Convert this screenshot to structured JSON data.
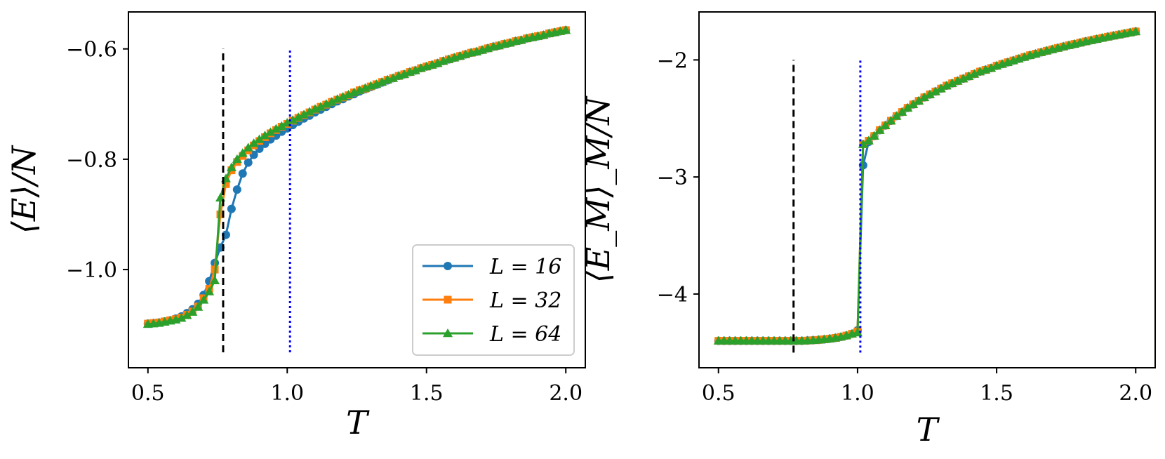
{
  "colors": {
    "L16": "#1f77b4",
    "L32": "#ff7f0e",
    "L64": "#2ca02c",
    "dashed_line": "#000000",
    "dotted_line": "#0000ff"
  },
  "chart_data": [
    {
      "type": "line",
      "title": "",
      "xlabel": "T",
      "ylabel": "⟨E⟩/N",
      "xlim": [
        0.43,
        2.07
      ],
      "ylim": [
        -1.178,
        -0.533
      ],
      "xticks": [
        0.5,
        1.0,
        1.5,
        2.0
      ],
      "xtick_labels": [
        "0.5",
        "1.0",
        "1.5",
        "2.0"
      ],
      "yticks": [
        -0.6,
        -0.8,
        -1.0
      ],
      "ytick_labels": [
        "−0.6",
        "−0.8",
        "−1.0"
      ],
      "legend_position": "lower-right",
      "vlines": [
        {
          "x": 0.77,
          "ymin": -1.15,
          "ymax": -0.6,
          "style": "dashed",
          "color": "#000000"
        },
        {
          "x": 1.01,
          "ymin": -1.15,
          "ymax": -0.6,
          "style": "dotted",
          "color": "#0000ff"
        }
      ],
      "x": [
        0.5,
        0.52,
        0.54,
        0.56,
        0.58,
        0.6,
        0.62,
        0.64,
        0.66,
        0.68,
        0.7,
        0.72,
        0.74,
        0.76,
        0.78,
        0.8,
        0.82,
        0.84,
        0.86,
        0.88,
        0.9,
        0.92,
        0.94,
        0.96,
        0.98,
        1.0,
        1.02,
        1.04,
        1.06,
        1.08,
        1.1,
        1.12,
        1.14,
        1.16,
        1.18,
        1.2,
        1.22,
        1.24,
        1.26,
        1.28,
        1.3,
        1.32,
        1.34,
        1.36,
        1.38,
        1.4,
        1.42,
        1.44,
        1.46,
        1.48,
        1.5,
        1.52,
        1.54,
        1.56,
        1.58,
        1.6,
        1.62,
        1.64,
        1.66,
        1.68,
        1.7,
        1.72,
        1.74,
        1.76,
        1.78,
        1.8,
        1.82,
        1.84,
        1.86,
        1.88,
        1.9,
        1.92,
        1.94,
        1.96,
        1.98,
        2.0
      ],
      "series": [
        {
          "name": "L = 16",
          "label_math": "L = 16",
          "marker": "circle",
          "color": "#1f77b4",
          "values": [
            -1.098,
            -1.097,
            -1.096,
            -1.094,
            -1.092,
            -1.089,
            -1.085,
            -1.079,
            -1.072,
            -1.062,
            -1.046,
            -1.021,
            -0.988,
            -0.96,
            -0.937,
            -0.89,
            -0.855,
            -0.826,
            -0.806,
            -0.792,
            -0.781,
            -0.772,
            -0.764,
            -0.757,
            -0.75,
            -0.744,
            -0.738,
            -0.732,
            -0.726,
            -0.721,
            -0.715,
            -0.71,
            -0.705,
            -0.7,
            -0.695,
            -0.691,
            -0.686,
            -0.682,
            -0.677,
            -0.673,
            -0.669,
            -0.665,
            -0.661,
            -0.657,
            -0.653,
            -0.649,
            -0.646,
            -0.642,
            -0.639,
            -0.635,
            -0.632,
            -0.629,
            -0.626,
            -0.622,
            -0.619,
            -0.616,
            -0.613,
            -0.61,
            -0.607,
            -0.605,
            -0.602,
            -0.599,
            -0.596,
            -0.594,
            -0.591,
            -0.589,
            -0.586,
            -0.584,
            -0.581,
            -0.579,
            -0.577,
            -0.575,
            -0.572,
            -0.57,
            -0.568,
            -0.566
          ]
        },
        {
          "name": "L = 32",
          "label_math": "L = 32",
          "marker": "square",
          "color": "#ff7f0e",
          "values": [
            -1.098,
            -1.097,
            -1.096,
            -1.094,
            -1.092,
            -1.09,
            -1.087,
            -1.082,
            -1.076,
            -1.067,
            -1.052,
            -1.035,
            -1.0,
            -0.9,
            -0.845,
            -0.82,
            -0.805,
            -0.794,
            -0.784,
            -0.775,
            -0.767,
            -0.76,
            -0.753,
            -0.747,
            -0.741,
            -0.736,
            -0.73,
            -0.725,
            -0.72,
            -0.715,
            -0.71,
            -0.705,
            -0.701,
            -0.696,
            -0.692,
            -0.688,
            -0.684,
            -0.679,
            -0.675,
            -0.672,
            -0.668,
            -0.664,
            -0.66,
            -0.656,
            -0.653,
            -0.649,
            -0.646,
            -0.642,
            -0.639,
            -0.635,
            -0.632,
            -0.629,
            -0.626,
            -0.622,
            -0.619,
            -0.616,
            -0.613,
            -0.61,
            -0.607,
            -0.605,
            -0.602,
            -0.599,
            -0.596,
            -0.594,
            -0.591,
            -0.589,
            -0.586,
            -0.584,
            -0.581,
            -0.579,
            -0.577,
            -0.575,
            -0.572,
            -0.57,
            -0.568,
            -0.566
          ]
        },
        {
          "name": "L = 64",
          "label_math": "L = 64",
          "marker": "triangle",
          "color": "#2ca02c",
          "values": [
            -1.099,
            -1.098,
            -1.097,
            -1.095,
            -1.093,
            -1.091,
            -1.088,
            -1.083,
            -1.077,
            -1.068,
            -1.055,
            -1.04,
            -1.02,
            -0.87,
            -0.835,
            -0.815,
            -0.8,
            -0.789,
            -0.779,
            -0.771,
            -0.764,
            -0.757,
            -0.751,
            -0.745,
            -0.74,
            -0.734,
            -0.729,
            -0.724,
            -0.719,
            -0.714,
            -0.709,
            -0.705,
            -0.7,
            -0.696,
            -0.691,
            -0.687,
            -0.683,
            -0.679,
            -0.675,
            -0.671,
            -0.667,
            -0.664,
            -0.66,
            -0.656,
            -0.653,
            -0.649,
            -0.646,
            -0.642,
            -0.639,
            -0.635,
            -0.632,
            -0.629,
            -0.626,
            -0.622,
            -0.619,
            -0.616,
            -0.613,
            -0.61,
            -0.607,
            -0.605,
            -0.602,
            -0.599,
            -0.596,
            -0.594,
            -0.591,
            -0.589,
            -0.586,
            -0.584,
            -0.581,
            -0.579,
            -0.577,
            -0.575,
            -0.572,
            -0.57,
            -0.568,
            -0.566
          ]
        }
      ]
    },
    {
      "type": "line",
      "title": "",
      "xlabel": "T",
      "ylabel": "⟨E_M⟩_M/N",
      "xlim": [
        0.43,
        2.07
      ],
      "ylim": [
        -4.63,
        -1.59
      ],
      "xticks": [
        0.5,
        1.0,
        1.5,
        2.0
      ],
      "xtick_labels": [
        "0.5",
        "1.0",
        "1.5",
        "2.0"
      ],
      "yticks": [
        -2,
        -3,
        -4
      ],
      "ytick_labels": [
        "−2",
        "−3",
        "−4"
      ],
      "vlines": [
        {
          "x": 0.77,
          "ymin": -4.5,
          "ymax": -2.0,
          "style": "dashed",
          "color": "#000000"
        },
        {
          "x": 1.01,
          "ymin": -4.5,
          "ymax": -2.0,
          "style": "dotted",
          "color": "#0000ff"
        }
      ],
      "x": [
        0.5,
        0.52,
        0.54,
        0.56,
        0.58,
        0.6,
        0.62,
        0.64,
        0.66,
        0.68,
        0.7,
        0.72,
        0.74,
        0.76,
        0.78,
        0.8,
        0.82,
        0.84,
        0.86,
        0.88,
        0.9,
        0.92,
        0.94,
        0.96,
        0.98,
        1.0,
        1.02,
        1.04,
        1.06,
        1.08,
        1.1,
        1.12,
        1.14,
        1.16,
        1.18,
        1.2,
        1.22,
        1.24,
        1.26,
        1.28,
        1.3,
        1.32,
        1.34,
        1.36,
        1.38,
        1.4,
        1.42,
        1.44,
        1.46,
        1.48,
        1.5,
        1.52,
        1.54,
        1.56,
        1.58,
        1.6,
        1.62,
        1.64,
        1.66,
        1.68,
        1.7,
        1.72,
        1.74,
        1.76,
        1.78,
        1.8,
        1.82,
        1.84,
        1.86,
        1.88,
        1.9,
        1.92,
        1.94,
        1.96,
        1.98,
        2.0
      ],
      "series": [
        {
          "name": "L = 16",
          "marker": "circle",
          "color": "#1f77b4",
          "values": [
            -4.4,
            -4.4,
            -4.4,
            -4.4,
            -4.4,
            -4.4,
            -4.4,
            -4.4,
            -4.4,
            -4.4,
            -4.4,
            -4.4,
            -4.4,
            -4.4,
            -4.4,
            -4.4,
            -4.398,
            -4.395,
            -4.392,
            -4.387,
            -4.382,
            -4.375,
            -4.366,
            -4.355,
            -4.34,
            -4.31,
            -2.9,
            -2.7,
            -2.65,
            -2.6,
            -2.56,
            -2.52,
            -2.48,
            -2.445,
            -2.41,
            -2.38,
            -2.35,
            -2.32,
            -2.295,
            -2.27,
            -2.245,
            -2.22,
            -2.2,
            -2.18,
            -2.16,
            -2.14,
            -2.12,
            -2.1,
            -2.085,
            -2.07,
            -2.05,
            -2.035,
            -2.02,
            -2.005,
            -1.99,
            -1.975,
            -1.96,
            -1.948,
            -1.935,
            -1.922,
            -1.91,
            -1.898,
            -1.886,
            -1.875,
            -1.864,
            -1.853,
            -1.842,
            -1.832,
            -1.822,
            -1.812,
            -1.802,
            -1.793,
            -1.784,
            -1.775,
            -1.766,
            -1.757
          ]
        },
        {
          "name": "L = 32",
          "marker": "square",
          "color": "#ff7f0e",
          "values": [
            -4.4,
            -4.4,
            -4.4,
            -4.4,
            -4.4,
            -4.4,
            -4.4,
            -4.4,
            -4.4,
            -4.4,
            -4.4,
            -4.4,
            -4.4,
            -4.4,
            -4.4,
            -4.4,
            -4.398,
            -4.395,
            -4.392,
            -4.387,
            -4.382,
            -4.375,
            -4.366,
            -4.355,
            -4.34,
            -4.32,
            -2.72,
            -2.69,
            -2.65,
            -2.6,
            -2.56,
            -2.52,
            -2.48,
            -2.445,
            -2.41,
            -2.38,
            -2.35,
            -2.32,
            -2.295,
            -2.27,
            -2.245,
            -2.22,
            -2.2,
            -2.18,
            -2.16,
            -2.14,
            -2.12,
            -2.1,
            -2.085,
            -2.07,
            -2.05,
            -2.035,
            -2.02,
            -2.005,
            -1.99,
            -1.975,
            -1.96,
            -1.948,
            -1.935,
            -1.922,
            -1.91,
            -1.898,
            -1.886,
            -1.875,
            -1.864,
            -1.853,
            -1.842,
            -1.832,
            -1.822,
            -1.812,
            -1.802,
            -1.793,
            -1.784,
            -1.775,
            -1.766,
            -1.757
          ]
        },
        {
          "name": "L = 64",
          "marker": "triangle",
          "color": "#2ca02c",
          "values": [
            -4.4,
            -4.4,
            -4.4,
            -4.4,
            -4.4,
            -4.4,
            -4.4,
            -4.4,
            -4.4,
            -4.4,
            -4.4,
            -4.4,
            -4.4,
            -4.4,
            -4.4,
            -4.4,
            -4.398,
            -4.395,
            -4.392,
            -4.387,
            -4.382,
            -4.375,
            -4.366,
            -4.355,
            -4.34,
            -4.33,
            -2.72,
            -2.69,
            -2.65,
            -2.6,
            -2.56,
            -2.52,
            -2.48,
            -2.445,
            -2.41,
            -2.38,
            -2.35,
            -2.32,
            -2.295,
            -2.27,
            -2.245,
            -2.22,
            -2.2,
            -2.18,
            -2.16,
            -2.14,
            -2.12,
            -2.1,
            -2.085,
            -2.07,
            -2.05,
            -2.035,
            -2.02,
            -2.005,
            -1.99,
            -1.975,
            -1.96,
            -1.948,
            -1.935,
            -1.922,
            -1.91,
            -1.898,
            -1.886,
            -1.875,
            -1.864,
            -1.853,
            -1.842,
            -1.832,
            -1.822,
            -1.812,
            -1.802,
            -1.793,
            -1.784,
            -1.775,
            -1.766,
            -1.757
          ]
        }
      ]
    }
  ]
}
